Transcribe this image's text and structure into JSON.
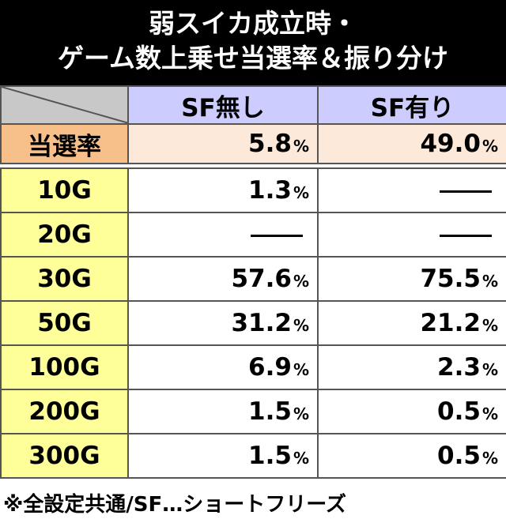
{
  "title": {
    "line1": "弱スイカ成立時・",
    "line2": "ゲーム数上乗せ当選率＆振り分け"
  },
  "table": {
    "columns": [
      "SF無し",
      "SF有り"
    ],
    "rate": {
      "label": "当選率",
      "values": [
        "5.8",
        "49.0"
      ]
    },
    "unit": "%",
    "rows": [
      {
        "label": "10G",
        "values": [
          "1.3",
          null
        ]
      },
      {
        "label": "20G",
        "values": [
          null,
          null
        ]
      },
      {
        "label": "30G",
        "values": [
          "57.6",
          "75.5"
        ]
      },
      {
        "label": "50G",
        "values": [
          "31.2",
          "21.2"
        ]
      },
      {
        "label": "100G",
        "values": [
          "6.9",
          "2.3"
        ]
      },
      {
        "label": "200G",
        "values": [
          "1.5",
          "0.5"
        ]
      },
      {
        "label": "300G",
        "values": [
          "1.5",
          "0.5"
        ]
      }
    ]
  },
  "note": "※全設定共通/SF…ショートフリーズ"
}
